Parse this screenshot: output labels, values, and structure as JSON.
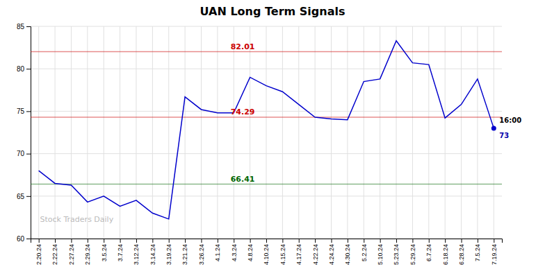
{
  "chart_data": {
    "type": "line",
    "title": "UAN Long Term Signals",
    "categories": [
      "2.20.24",
      "2.22.24",
      "2.27.24",
      "2.29.24",
      "3.5.24",
      "3.7.24",
      "3.12.24",
      "3.14.24",
      "3.19.24",
      "3.21.24",
      "3.26.24",
      "4.1.24",
      "4.3.24",
      "4.8.24",
      "4.10.24",
      "4.15.24",
      "4.17.24",
      "4.22.24",
      "4.24.24",
      "4.30.24",
      "5.2.24",
      "5.10.24",
      "5.23.24",
      "5.29.24",
      "6.7.24",
      "6.18.24",
      "6.28.24",
      "7.5.24",
      "7.19.24"
    ],
    "series": [
      {
        "values": [
          68.0,
          66.5,
          66.3,
          64.3,
          65.0,
          63.8,
          64.5,
          63.0,
          62.3,
          76.7,
          75.2,
          74.8,
          74.8,
          79.0,
          78.0,
          77.3,
          75.8,
          74.3,
          74.1,
          74.0,
          78.5,
          78.8,
          83.3,
          80.7,
          80.5,
          74.2,
          75.8,
          78.8,
          73.0
        ],
        "color": "#0000cc",
        "marker": "last"
      }
    ],
    "hlines": [
      {
        "value": 82.01,
        "label": "82.01",
        "color": "#cc0000"
      },
      {
        "value": 74.29,
        "label": "74.29",
        "color": "#cc0000"
      },
      {
        "value": 66.41,
        "label": "66.41",
        "color": "#006600"
      }
    ],
    "annotations": [
      {
        "text": "16:00",
        "x": "7.19.24",
        "y": 73.0
      },
      {
        "text": "73",
        "x": "7.19.24",
        "y": 73.0,
        "color": "#0000aa"
      }
    ],
    "watermark": "Stock Traders Daily",
    "ylim": [
      60,
      85
    ],
    "yticks": [
      60,
      65,
      70,
      75,
      80,
      85
    ],
    "grid": true
  }
}
